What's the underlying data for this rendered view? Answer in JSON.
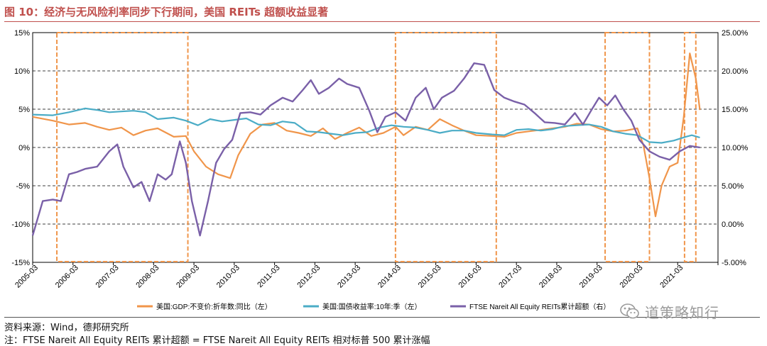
{
  "title": "图 10：经济与无风险利率同步下行期间，美国 REITs 超额收益显著",
  "source": "资料来源：Wind，德邦研究所",
  "note": "注：FTSE Nareit All Equity REITs 累计超额 = FTSE Nareit All Equity REITs 相对标普 500 累计涨幅",
  "watermark": "道策略知行",
  "colors": {
    "gdp": "#f0954a",
    "yield": "#4bacc6",
    "excess": "#7a60a8",
    "box": "#f0954a",
    "title": "#c0504d"
  },
  "chart_data": {
    "type": "line",
    "x_start": 2005.0,
    "x_end": 2022.0,
    "x_tick_labels": [
      "2005-03",
      "2006-03",
      "2007-03",
      "2008-03",
      "2009-03",
      "2010-03",
      "2011-03",
      "2012-03",
      "2013-03",
      "2014-03",
      "2015-03",
      "2016-03",
      "2017-03",
      "2018-03",
      "2019-03",
      "2020-03",
      "2021-03"
    ],
    "left_axis": {
      "min": -15,
      "max": 15,
      "ticks": [
        -15,
        -10,
        -5,
        0,
        5,
        10,
        15
      ],
      "tick_labels": [
        "-15%",
        "-10%",
        "-5%",
        "0%",
        "5%",
        "10%",
        "15%"
      ]
    },
    "right_axis": {
      "min": -5,
      "max": 25,
      "ticks": [
        -5,
        0,
        5,
        10,
        15,
        20,
        25
      ],
      "tick_labels": [
        "-5.00%",
        "0.00%",
        "5.00%",
        "10.00%",
        "15.00%",
        "20.00%",
        "25.00%"
      ]
    },
    "highlight_periods": [
      [
        2005.6,
        2008.85
      ],
      [
        2014.0,
        2016.5
      ],
      [
        2019.2,
        2020.3
      ],
      [
        2021.17,
        2021.45
      ]
    ],
    "series": [
      {
        "name": "美国:GDP:不变价:折年数:同比（左）",
        "axis": "left",
        "color_key": "gdp",
        "points": [
          [
            2005.0,
            4.0
          ],
          [
            2005.5,
            3.5
          ],
          [
            2005.9,
            3.0
          ],
          [
            2006.3,
            3.2
          ],
          [
            2006.6,
            2.7
          ],
          [
            2006.9,
            2.3
          ],
          [
            2007.2,
            2.6
          ],
          [
            2007.5,
            1.6
          ],
          [
            2007.8,
            2.2
          ],
          [
            2008.1,
            2.5
          ],
          [
            2008.5,
            1.4
          ],
          [
            2008.8,
            1.5
          ],
          [
            2009.0,
            -0.5
          ],
          [
            2009.3,
            -2.5
          ],
          [
            2009.6,
            -3.5
          ],
          [
            2009.9,
            -4.0
          ],
          [
            2010.1,
            -1.0
          ],
          [
            2010.4,
            1.8
          ],
          [
            2010.7,
            3.0
          ],
          [
            2011.0,
            3.2
          ],
          [
            2011.3,
            2.2
          ],
          [
            2011.6,
            1.9
          ],
          [
            2011.9,
            1.5
          ],
          [
            2012.2,
            2.5
          ],
          [
            2012.5,
            1.1
          ],
          [
            2012.8,
            1.9
          ],
          [
            2013.1,
            2.6
          ],
          [
            2013.4,
            1.5
          ],
          [
            2013.7,
            1.9
          ],
          [
            2014.0,
            2.7
          ],
          [
            2014.2,
            1.6
          ],
          [
            2014.5,
            2.7
          ],
          [
            2014.8,
            2.3
          ],
          [
            2015.1,
            3.7
          ],
          [
            2015.4,
            2.9
          ],
          [
            2015.7,
            2.2
          ],
          [
            2016.0,
            1.6
          ],
          [
            2016.4,
            1.5
          ],
          [
            2016.7,
            1.4
          ],
          [
            2017.0,
            1.9
          ],
          [
            2017.3,
            2.1
          ],
          [
            2017.6,
            2.3
          ],
          [
            2017.9,
            2.5
          ],
          [
            2018.2,
            2.7
          ],
          [
            2018.5,
            3.1
          ],
          [
            2018.8,
            3.0
          ],
          [
            2019.1,
            2.4
          ],
          [
            2019.4,
            2.1
          ],
          [
            2019.7,
            2.2
          ],
          [
            2020.0,
            2.5
          ],
          [
            2020.15,
            0.3
          ],
          [
            2020.3,
            -4.0
          ],
          [
            2020.45,
            -9.0
          ],
          [
            2020.6,
            -5.0
          ],
          [
            2020.8,
            -2.5
          ],
          [
            2021.0,
            -2.0
          ],
          [
            2021.15,
            4.0
          ],
          [
            2021.3,
            12.3
          ],
          [
            2021.45,
            9.0
          ],
          [
            2021.55,
            4.9
          ]
        ]
      },
      {
        "name": "美国:国债收益率:10年:季（左）",
        "axis": "left",
        "color_key": "yield",
        "points": [
          [
            2005.0,
            4.3
          ],
          [
            2005.5,
            4.2
          ],
          [
            2005.9,
            4.6
          ],
          [
            2006.3,
            5.1
          ],
          [
            2006.6,
            4.9
          ],
          [
            2006.9,
            4.6
          ],
          [
            2007.2,
            4.7
          ],
          [
            2007.5,
            4.8
          ],
          [
            2007.8,
            4.6
          ],
          [
            2008.1,
            3.7
          ],
          [
            2008.5,
            3.9
          ],
          [
            2008.8,
            3.5
          ],
          [
            2009.1,
            2.9
          ],
          [
            2009.4,
            3.7
          ],
          [
            2009.7,
            3.4
          ],
          [
            2010.0,
            3.6
          ],
          [
            2010.3,
            3.8
          ],
          [
            2010.6,
            3.0
          ],
          [
            2010.9,
            2.9
          ],
          [
            2011.2,
            3.4
          ],
          [
            2011.5,
            3.2
          ],
          [
            2011.8,
            2.1
          ],
          [
            2012.1,
            2.0
          ],
          [
            2012.4,
            1.8
          ],
          [
            2012.7,
            1.6
          ],
          [
            2013.0,
            1.9
          ],
          [
            2013.3,
            2.0
          ],
          [
            2013.6,
            2.6
          ],
          [
            2013.9,
            2.9
          ],
          [
            2014.2,
            2.7
          ],
          [
            2014.5,
            2.6
          ],
          [
            2014.8,
            2.3
          ],
          [
            2015.1,
            1.9
          ],
          [
            2015.4,
            2.2
          ],
          [
            2015.7,
            2.2
          ],
          [
            2016.0,
            1.9
          ],
          [
            2016.4,
            1.7
          ],
          [
            2016.7,
            1.6
          ],
          [
            2017.0,
            2.3
          ],
          [
            2017.3,
            2.4
          ],
          [
            2017.6,
            2.2
          ],
          [
            2017.9,
            2.4
          ],
          [
            2018.2,
            2.8
          ],
          [
            2018.5,
            2.9
          ],
          [
            2018.8,
            3.0
          ],
          [
            2019.1,
            2.7
          ],
          [
            2019.4,
            2.1
          ],
          [
            2019.7,
            1.8
          ],
          [
            2020.0,
            1.6
          ],
          [
            2020.3,
            0.7
          ],
          [
            2020.6,
            0.6
          ],
          [
            2020.9,
            0.9
          ],
          [
            2021.2,
            1.4
          ],
          [
            2021.35,
            1.6
          ],
          [
            2021.55,
            1.3
          ]
        ]
      },
      {
        "name": "FTSE Nareit All Equity REITs累计超额（右）",
        "axis": "right",
        "color_key": "excess",
        "points": [
          [
            2005.0,
            -1.5
          ],
          [
            2005.25,
            3.0
          ],
          [
            2005.5,
            3.2
          ],
          [
            2005.7,
            3.0
          ],
          [
            2005.9,
            6.5
          ],
          [
            2006.1,
            6.8
          ],
          [
            2006.3,
            7.2
          ],
          [
            2006.6,
            7.5
          ],
          [
            2006.9,
            9.5
          ],
          [
            2007.1,
            10.4
          ],
          [
            2007.25,
            7.5
          ],
          [
            2007.5,
            4.8
          ],
          [
            2007.7,
            5.5
          ],
          [
            2007.9,
            3.0
          ],
          [
            2008.1,
            6.5
          ],
          [
            2008.3,
            5.8
          ],
          [
            2008.45,
            6.5
          ],
          [
            2008.65,
            10.8
          ],
          [
            2008.8,
            8.0
          ],
          [
            2008.95,
            3.0
          ],
          [
            2009.15,
            -1.5
          ],
          [
            2009.35,
            3.0
          ],
          [
            2009.55,
            8.0
          ],
          [
            2009.75,
            9.8
          ],
          [
            2009.95,
            11.0
          ],
          [
            2010.15,
            14.5
          ],
          [
            2010.4,
            14.6
          ],
          [
            2010.65,
            14.3
          ],
          [
            2010.9,
            15.5
          ],
          [
            2011.2,
            16.5
          ],
          [
            2011.45,
            16.0
          ],
          [
            2011.7,
            17.5
          ],
          [
            2011.9,
            18.8
          ],
          [
            2012.1,
            17.0
          ],
          [
            2012.35,
            17.8
          ],
          [
            2012.6,
            19.0
          ],
          [
            2012.8,
            18.3
          ],
          [
            2013.1,
            17.8
          ],
          [
            2013.35,
            14.8
          ],
          [
            2013.55,
            12.0
          ],
          [
            2013.75,
            14.0
          ],
          [
            2014.0,
            14.6
          ],
          [
            2014.25,
            13.5
          ],
          [
            2014.5,
            16.5
          ],
          [
            2014.75,
            17.8
          ],
          [
            2014.95,
            15.0
          ],
          [
            2015.15,
            16.5
          ],
          [
            2015.45,
            17.4
          ],
          [
            2015.7,
            19.0
          ],
          [
            2015.95,
            21.0
          ],
          [
            2016.2,
            20.8
          ],
          [
            2016.45,
            17.5
          ],
          [
            2016.7,
            16.5
          ],
          [
            2016.95,
            16.0
          ],
          [
            2017.2,
            15.6
          ],
          [
            2017.45,
            14.5
          ],
          [
            2017.7,
            13.3
          ],
          [
            2017.95,
            13.2
          ],
          [
            2018.2,
            13.0
          ],
          [
            2018.45,
            14.5
          ],
          [
            2018.65,
            13.0
          ],
          [
            2018.85,
            14.8
          ],
          [
            2019.05,
            16.5
          ],
          [
            2019.25,
            15.5
          ],
          [
            2019.45,
            16.8
          ],
          [
            2019.65,
            15.0
          ],
          [
            2019.85,
            13.5
          ],
          [
            2020.05,
            11.0
          ],
          [
            2020.3,
            9.5
          ],
          [
            2020.55,
            8.8
          ],
          [
            2020.8,
            8.4
          ],
          [
            2021.05,
            9.5
          ],
          [
            2021.3,
            10.2
          ],
          [
            2021.55,
            10.0
          ]
        ]
      }
    ]
  }
}
